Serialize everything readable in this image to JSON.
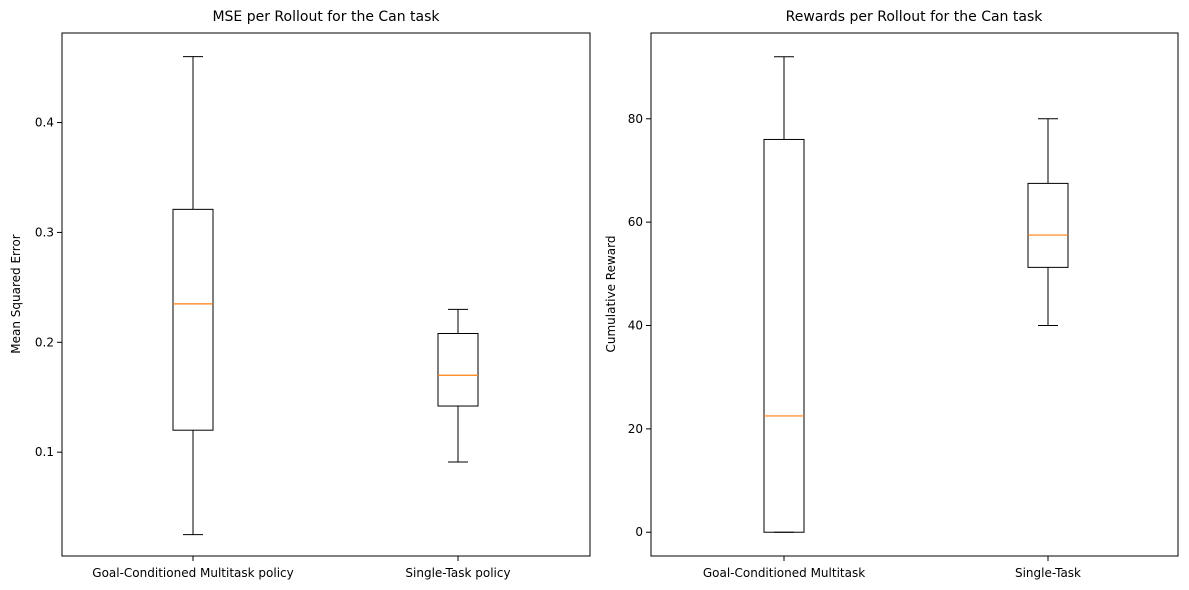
{
  "chart_data": [
    {
      "type": "box",
      "title": "MSE per Rollout for the Can task",
      "xlabel": "",
      "ylabel": "Mean Squared Error",
      "ylim": [
        0.0055,
        0.4815
      ],
      "yticks": [
        0.1,
        0.2,
        0.3,
        0.4
      ],
      "ytick_labels": [
        "0.1",
        "0.2",
        "0.3",
        "0.4"
      ],
      "categories": [
        "Goal-Conditioned Multitask policy",
        "Single-Task policy"
      ],
      "boxes": [
        {
          "whislo": 0.025,
          "q1": 0.12,
          "med": 0.235,
          "q3": 0.321,
          "whishi": 0.46
        },
        {
          "whislo": 0.091,
          "q1": 0.142,
          "med": 0.17,
          "q3": 0.208,
          "whishi": 0.23
        }
      ]
    },
    {
      "type": "box",
      "title": "Rewards per Rollout for the Can task",
      "xlabel": "",
      "ylabel": "Cumulative Reward",
      "ylim": [
        -4.6,
        96.6
      ],
      "yticks": [
        0,
        20,
        40,
        60,
        80
      ],
      "ytick_labels": [
        "0",
        "20",
        "40",
        "60",
        "80"
      ],
      "categories": [
        "Goal-Conditioned Multitask",
        "Single-Task"
      ],
      "boxes": [
        {
          "whislo": 0,
          "q1": 0,
          "med": 22.5,
          "q3": 76,
          "whishi": 92
        },
        {
          "whislo": 40,
          "q1": 51.25,
          "med": 57.5,
          "q3": 67.5,
          "whishi": 80
        }
      ]
    }
  ],
  "colors": {
    "box": "#000000",
    "median": "#ff7f0e",
    "background": "#ffffff"
  }
}
